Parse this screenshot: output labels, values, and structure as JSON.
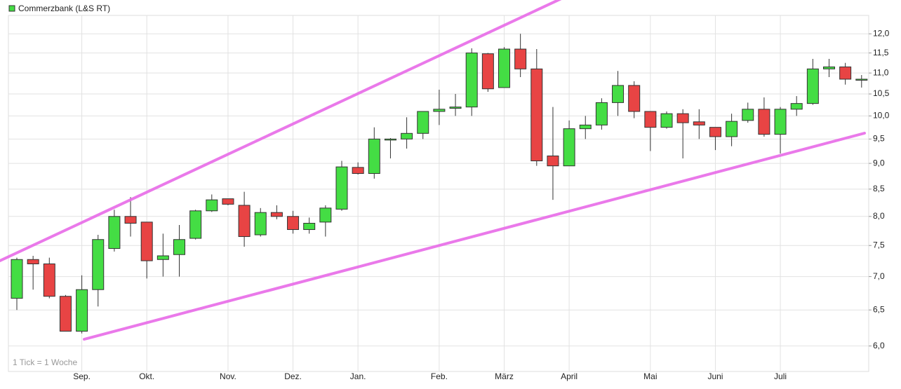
{
  "chart_data": {
    "type": "candlestick",
    "annotation": "1 Tick = 1 Woche",
    "log_scale": true,
    "grid": true,
    "legend": "top-left",
    "ylim": [
      5.67,
      12.5
    ],
    "yticks": [
      {
        "value": 6,
        "label": "6,0"
      },
      {
        "value": 6.5,
        "label": "6,5"
      },
      {
        "value": 7,
        "label": "7,0"
      },
      {
        "value": 7.5,
        "label": "7,5"
      },
      {
        "value": 8,
        "label": "8,0"
      },
      {
        "value": 8.5,
        "label": "8,5"
      },
      {
        "value": 9,
        "label": "9,0"
      },
      {
        "value": 9.5,
        "label": "9,5"
      },
      {
        "value": 10,
        "label": "10,0"
      },
      {
        "value": 10.5,
        "label": "10,5"
      },
      {
        "value": 11,
        "label": "11,0"
      },
      {
        "value": 11.5,
        "label": "11,5"
      },
      {
        "value": 12,
        "label": "12,0"
      }
    ],
    "categories": [
      null,
      null,
      null,
      null,
      "Sep.",
      null,
      null,
      null,
      "Okt.",
      null,
      null,
      null,
      null,
      "Nov.",
      null,
      null,
      null,
      "Dez.",
      null,
      null,
      null,
      "Jan.",
      null,
      null,
      null,
      null,
      "Feb.",
      null,
      null,
      null,
      "März",
      null,
      null,
      null,
      "April",
      null,
      null,
      null,
      null,
      "Mai",
      null,
      null,
      null,
      "Juni",
      null,
      null,
      null,
      "Juli",
      null,
      null,
      null,
      null,
      null
    ],
    "series": [
      {
        "name": "Commerzbank (L&S RT)",
        "color": "#44dd44",
        "up_color": "#44dd44",
        "down_color": "#e84444",
        "open": [
          6.67,
          7.27,
          7.2,
          6.7,
          6.2,
          6.8,
          7.45,
          8.0,
          7.9,
          7.27,
          7.35,
          7.62,
          8.1,
          8.32,
          8.2,
          7.68,
          8.07,
          8.0,
          7.77,
          7.9,
          8.13,
          8.92,
          8.8,
          9.48,
          9.5,
          9.62,
          10.1,
          10.17,
          10.2,
          11.48,
          10.65,
          11.6,
          11.1,
          9.15,
          8.95,
          9.72,
          9.8,
          10.3,
          10.7,
          10.1,
          9.75,
          10.05,
          9.87,
          9.75,
          9.55,
          9.9,
          10.15,
          9.6,
          10.15,
          10.28,
          11.1,
          11.15,
          10.85
        ],
        "high": [
          7.3,
          7.33,
          7.3,
          6.72,
          7.02,
          7.68,
          8.12,
          8.35,
          7.9,
          7.7,
          7.85,
          8.12,
          8.4,
          8.32,
          8.45,
          8.15,
          8.2,
          8.1,
          7.98,
          8.2,
          9.05,
          9.02,
          9.75,
          9.52,
          9.97,
          10.1,
          10.6,
          10.5,
          11.62,
          11.5,
          11.65,
          12.0,
          11.6,
          10.2,
          9.9,
          10.0,
          10.4,
          11.05,
          10.8,
          10.1,
          10.1,
          10.15,
          10.15,
          9.75,
          10.05,
          10.3,
          10.42,
          10.2,
          10.45,
          11.35,
          11.35,
          11.25,
          10.95
        ],
        "low": [
          6.5,
          6.8,
          6.67,
          6.2,
          6.17,
          6.55,
          7.4,
          7.65,
          6.97,
          7.0,
          7.0,
          7.6,
          8.08,
          8.2,
          7.48,
          7.65,
          7.95,
          7.7,
          7.7,
          7.65,
          8.1,
          8.78,
          8.7,
          9.1,
          9.3,
          9.5,
          9.8,
          10.0,
          10.0,
          10.55,
          10.65,
          10.9,
          8.95,
          8.3,
          8.95,
          9.5,
          9.7,
          10.0,
          9.95,
          9.25,
          9.72,
          9.1,
          9.5,
          9.27,
          9.35,
          9.85,
          9.55,
          9.2,
          10.0,
          10.25,
          10.9,
          10.72,
          10.65
        ],
        "close": [
          7.27,
          7.2,
          6.7,
          6.2,
          6.8,
          7.6,
          8.0,
          7.88,
          7.25,
          7.33,
          7.6,
          8.1,
          8.3,
          8.22,
          7.65,
          8.07,
          8.0,
          7.77,
          7.88,
          8.15,
          8.93,
          8.8,
          9.5,
          9.5,
          9.62,
          10.1,
          10.15,
          10.2,
          11.5,
          10.62,
          11.6,
          11.1,
          9.05,
          8.95,
          9.72,
          9.8,
          10.3,
          10.7,
          10.1,
          9.75,
          10.05,
          9.85,
          9.8,
          9.55,
          9.88,
          10.15,
          9.6,
          10.15,
          10.28,
          11.1,
          11.15,
          10.85,
          10.85
        ]
      }
    ]
  }
}
